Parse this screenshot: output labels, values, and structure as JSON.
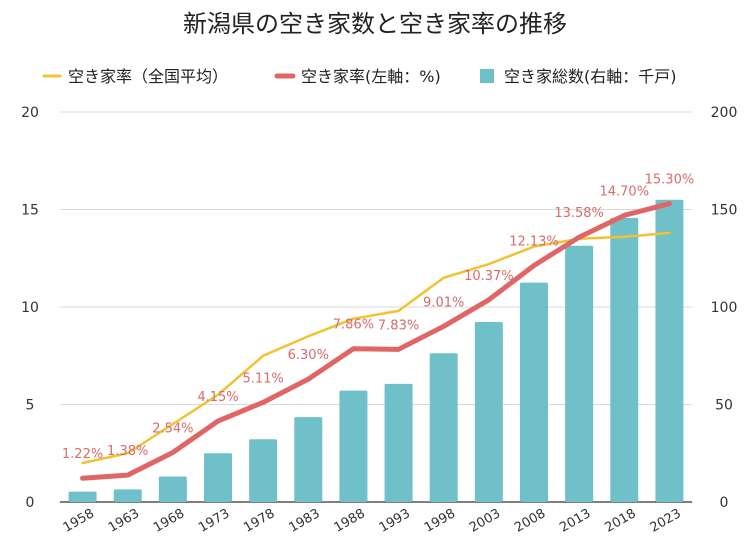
{
  "chart_data": {
    "type": "bar",
    "title": "新潟県の空き家数と空き家率の推移",
    "categories": [
      "1958",
      "1963",
      "1968",
      "1973",
      "1978",
      "1983",
      "1988",
      "1993",
      "1998",
      "2003",
      "2008",
      "2013",
      "2018",
      "2023"
    ],
    "series": [
      {
        "name": "空き家率（全国平均）",
        "kind": "line",
        "axis": "left",
        "color": "#f1c232",
        "values": [
          2.0,
          2.5,
          4.0,
          5.5,
          7.5,
          8.5,
          9.4,
          9.8,
          11.5,
          12.2,
          13.1,
          13.5,
          13.6,
          13.8
        ]
      },
      {
        "name": "空き家率(左軸：%)",
        "kind": "line",
        "axis": "left",
        "color": "#e06666",
        "values": [
          1.22,
          1.38,
          2.54,
          4.15,
          5.11,
          6.3,
          7.86,
          7.83,
          9.01,
          10.37,
          12.13,
          13.58,
          14.7,
          15.3
        ],
        "labels": [
          "1.22%",
          "1.38%",
          "2.54%",
          "4.15%",
          "5.11%",
          "6.30%",
          "7.86%",
          "7.83%",
          "9.01%",
          "10.37%",
          "12.13%",
          "13.58%",
          "14.70%",
          "15.30%"
        ]
      },
      {
        "name": "空き家総数(右軸：千戸)",
        "kind": "bar",
        "axis": "right",
        "color": "#6fc0c8",
        "values": [
          5.3,
          6.5,
          13.1,
          25.0,
          32.2,
          43.5,
          57.1,
          60.6,
          76.3,
          92.3,
          112.5,
          131.4,
          145.7,
          155.0
        ]
      }
    ],
    "yleft": {
      "min": 0,
      "max": 20,
      "ticks": [
        "0",
        "5",
        "10",
        "15",
        "20"
      ]
    },
    "yright": {
      "min": 0,
      "max": 200,
      "ticks": [
        "0",
        "50",
        "100",
        "150",
        "200"
      ]
    },
    "grid": true,
    "legend": "top-center"
  }
}
